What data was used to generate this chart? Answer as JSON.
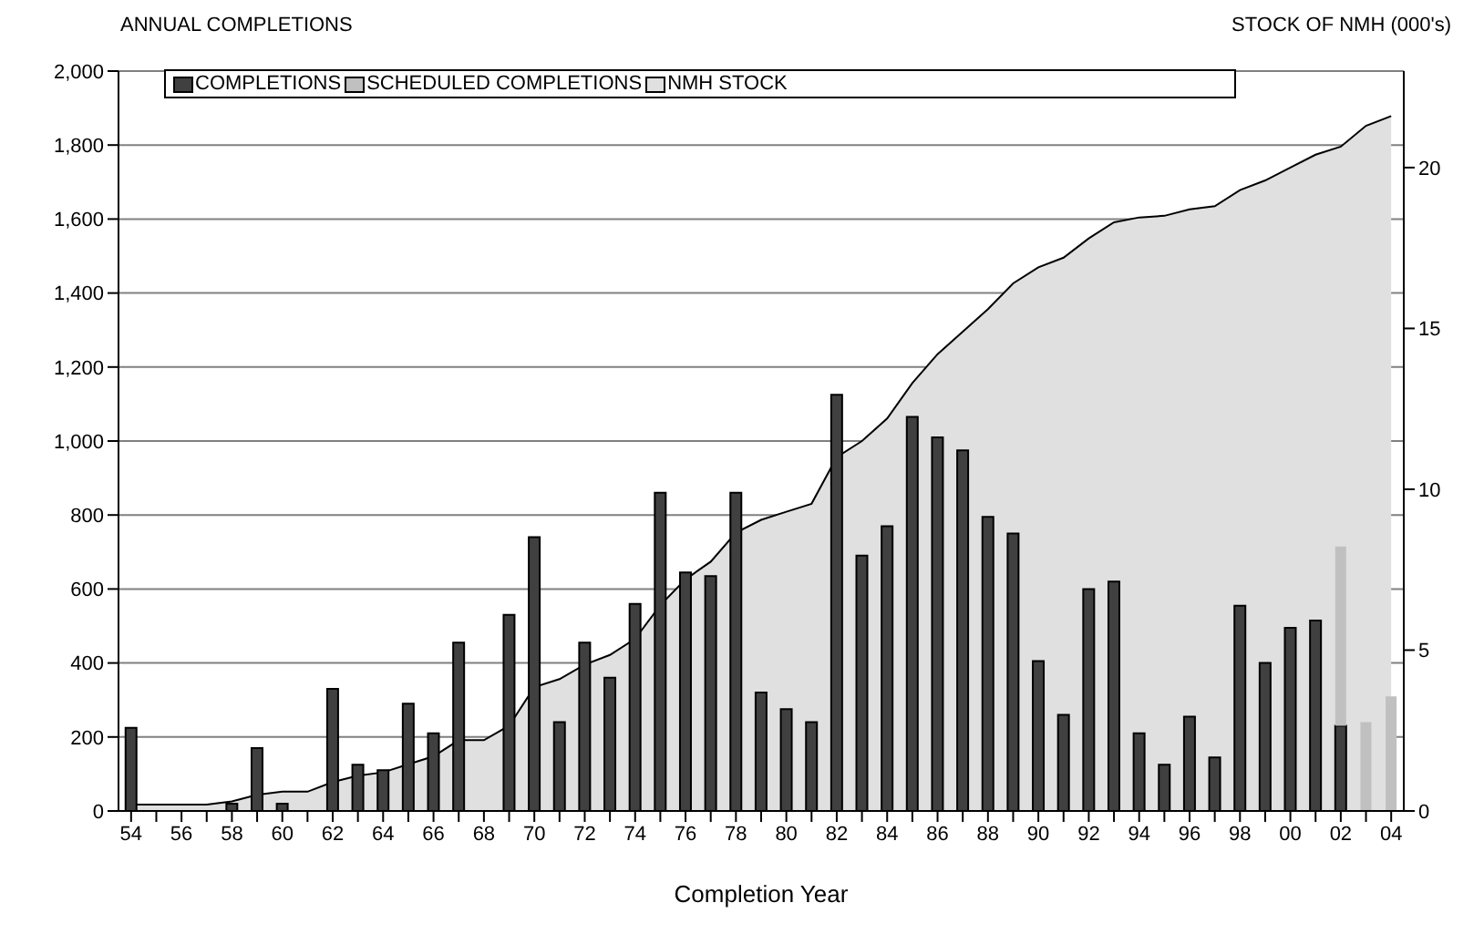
{
  "chart_data": {
    "type": "bar",
    "stacked": true,
    "xlabel": "Completion Year",
    "ylabel": "ANNUAL COMPLETIONS",
    "y2label": "STOCK OF NMH (000's)",
    "categories": [
      "54",
      null,
      "56",
      null,
      "58",
      null,
      "60",
      null,
      "62",
      null,
      "64",
      null,
      "66",
      null,
      "68",
      null,
      "70",
      null,
      "72",
      null,
      "74",
      null,
      "76",
      null,
      "78",
      null,
      "80",
      null,
      "82",
      null,
      "84",
      null,
      "86",
      null,
      "88",
      null,
      "90",
      null,
      "92",
      null,
      "94",
      null,
      "96",
      null,
      "98",
      null,
      "00",
      null,
      "02",
      null,
      "04"
    ],
    "series": [
      {
        "name": "COMPLETIONS",
        "color": "#404040",
        "values": [
          225,
          0,
          0,
          0,
          20,
          170,
          20,
          0,
          330,
          125,
          110,
          290,
          210,
          455,
          0,
          530,
          740,
          240,
          455,
          360,
          560,
          860,
          645,
          635,
          860,
          320,
          275,
          240,
          1125,
          690,
          770,
          1065,
          1010,
          975,
          795,
          750,
          405,
          260,
          600,
          620,
          210,
          125,
          255,
          145,
          555,
          400,
          495,
          515,
          230,
          null,
          null
        ]
      },
      {
        "name": "SCHEDULED COMPLETIONS",
        "color": "#c0c0c0",
        "values": [
          null,
          null,
          null,
          null,
          null,
          null,
          null,
          null,
          null,
          null,
          null,
          null,
          null,
          null,
          null,
          null,
          null,
          null,
          null,
          null,
          null,
          null,
          null,
          null,
          null,
          null,
          null,
          null,
          null,
          null,
          null,
          null,
          null,
          null,
          null,
          null,
          null,
          null,
          null,
          null,
          null,
          null,
          null,
          null,
          null,
          null,
          null,
          null,
          485,
          240,
          310
        ]
      },
      {
        "name": "NMH STOCK",
        "type": "area",
        "axis": "y2",
        "color": "#e0e0e0",
        "values": [
          0.2,
          0.2,
          0.2,
          0.2,
          0.3,
          0.5,
          0.6,
          0.6,
          0.9,
          1.1,
          1.2,
          1.45,
          1.7,
          2.2,
          2.2,
          2.65,
          3.85,
          4.1,
          4.55,
          4.85,
          5.35,
          6.4,
          7.2,
          7.75,
          8.65,
          9.05,
          9.3,
          9.55,
          11.0,
          11.5,
          12.2,
          13.3,
          14.2,
          14.9,
          15.6,
          16.4,
          16.9,
          17.2,
          17.8,
          18.3,
          18.45,
          18.5,
          18.7,
          18.8,
          19.3,
          19.6,
          20.0,
          20.4,
          20.65,
          21.3,
          21.6
        ]
      }
    ],
    "ylim": [
      0,
      2000
    ],
    "yticks": [
      0,
      200,
      400,
      600,
      800,
      {
        "value": 1000,
        "label": "1,000"
      },
      {
        "value": 1200,
        "label": "1,200"
      },
      {
        "value": 1400,
        "label": "1,400"
      },
      {
        "value": 1600,
        "label": "1,600"
      },
      {
        "value": 1800,
        "label": "1,800"
      },
      {
        "value": 2000,
        "label": "2,000"
      }
    ],
    "y2lim": [
      0,
      23
    ],
    "y2ticks": [
      0,
      5,
      10,
      15,
      20
    ],
    "grid": "y",
    "legend": "top"
  }
}
